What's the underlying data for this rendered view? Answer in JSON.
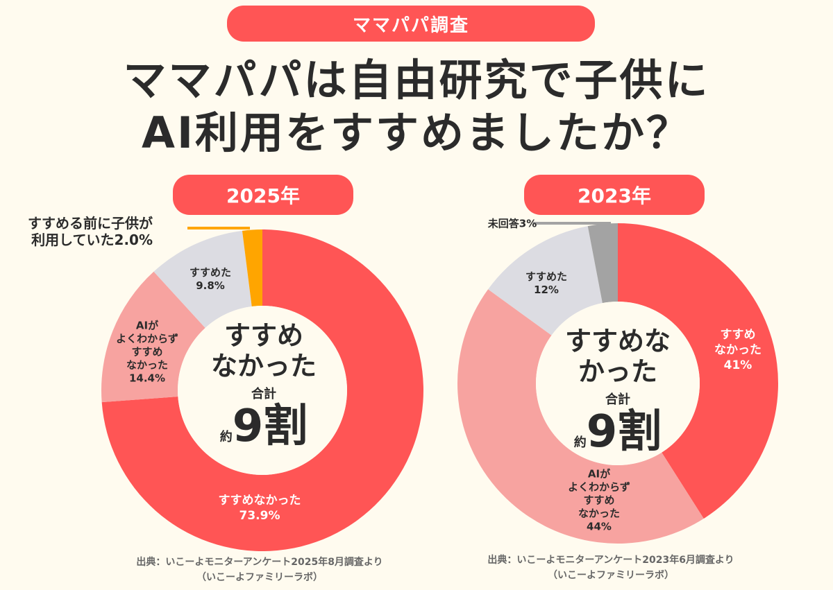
{
  "tag": "ママパパ調査",
  "title_line1": "ママパパは自由研究で子供に",
  "title_line2": "AI利用をすすめましたか？",
  "colors": {
    "red": "#FF5555",
    "pink": "#F7A3A0",
    "gray": "#DCDCE2",
    "orange": "#FFA500",
    "darkgray": "#A3A3A3",
    "background": "#FFFBEF"
  },
  "chart_data": [
    {
      "type": "pie",
      "title": "2025年",
      "categories": [
        "すすめなかった",
        "AIがよくわからずすすめなかった",
        "すすめた",
        "すすめる前に子供が利用していた"
      ],
      "values": [
        73.9,
        14.4,
        9.8,
        2.0
      ],
      "colors": [
        "#FF5555",
        "#F7A3A0",
        "#DCDCE2",
        "#FFA500"
      ],
      "labels": [
        "すすめなかった",
        "AIが\nよくわからず\nすすめ\nなかった",
        "すすめた",
        "すすめる前に子供が\n利用していた"
      ],
      "value_labels": [
        "73.9%",
        "14.4%",
        "9.8%",
        "2.0%"
      ],
      "center": {
        "line1": "すすめ",
        "line2": "なかった",
        "sum": "合計",
        "approx": "約",
        "big": "9割"
      },
      "source": "出典：いこーよモニターアンケート2025年8月調査より",
      "source2": "（いこーよファミリーラボ）"
    },
    {
      "type": "pie",
      "title": "2023年",
      "categories": [
        "すすめなかった",
        "AIがよくわからずすすめなかった",
        "すすめた",
        "未回答"
      ],
      "values": [
        41,
        44,
        12,
        3
      ],
      "colors": [
        "#FF5555",
        "#F7A3A0",
        "#DCDCE2",
        "#A3A3A3"
      ],
      "labels": [
        "すすめ\nなかった",
        "AIが\nよくわからず\nすすめ\nなかった",
        "すすめた",
        "未回答"
      ],
      "value_labels": [
        "41%",
        "44%",
        "12%",
        "3%"
      ],
      "center": {
        "line1": "すすめな",
        "line2": "かった",
        "sum": "合計",
        "approx": "約",
        "big": "9割"
      },
      "source": "出典：いこーよモニターアンケート2023年6月調査より",
      "source2": "（いこーよファミリーラボ）"
    }
  ]
}
